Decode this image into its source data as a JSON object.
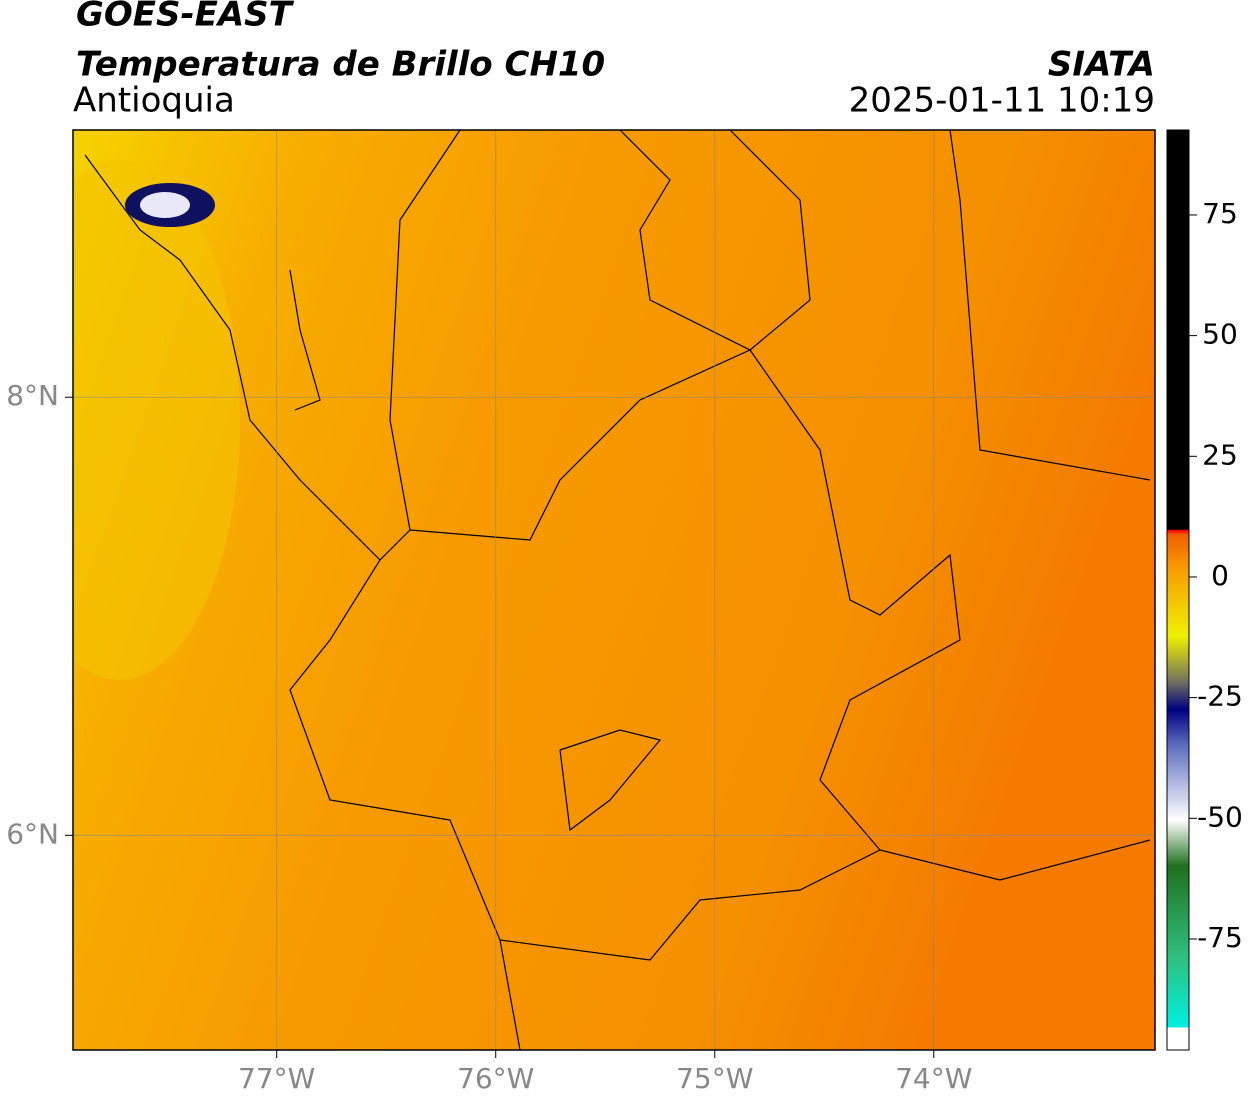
{
  "header": {
    "title": "GOES-EAST",
    "subtitle": "Temperatura de Brillo CH10",
    "region": "Antioquia",
    "source": "SIATA",
    "datetime": "2025-01-11 10:19"
  },
  "map": {
    "xlim": [
      -77.93,
      -72.99
    ],
    "ylim": [
      5.02,
      9.22
    ],
    "xticks": [
      {
        "value": -77,
        "label": "77°W"
      },
      {
        "value": -76,
        "label": "76°W"
      },
      {
        "value": -75,
        "label": "75°W"
      },
      {
        "value": -74,
        "label": "74°W"
      }
    ],
    "yticks": [
      {
        "value": 8,
        "label": "8°N"
      },
      {
        "value": 6,
        "label": "6°N"
      }
    ]
  },
  "colorbar": {
    "lim": [
      -98,
      92.6
    ],
    "ticks": [
      75,
      50,
      25,
      0,
      -25,
      -50,
      -75
    ]
  }
}
